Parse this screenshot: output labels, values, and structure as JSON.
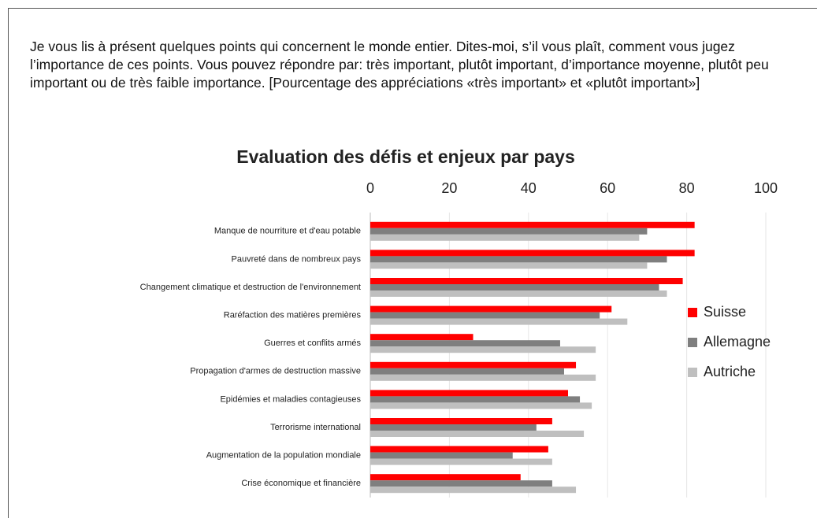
{
  "intro": "Je vous lis à présent quelques points qui concernent le monde entier. Dites-moi, s’il vous plaît, comment vous jugez l’importance de ces points. Vous pouvez répondre par: très important, plutôt important, d’importance moyenne, plutôt peu important ou de très faible importance. [Pourcentage des appréciations «très important» et «plutôt important»]",
  "chart_data": {
    "type": "hbar",
    "title": "Evaluation des défis et enjeux par pays",
    "categories": [
      "Manque de nourriture et d'eau potable",
      "Pauvreté dans de nombreux pays",
      "Changement climatique et destruction de l'environnement",
      "Raréfaction des matières premières",
      "Guerres et conflits armés",
      "Propagation d'armes de destruction massive",
      "Epidémies et maladies contagieuses",
      "Terrorisme international",
      "Augmentation de la population mondiale",
      "Crise économique et financière"
    ],
    "series": [
      {
        "name": "Suisse",
        "color": "#ff0000",
        "values": [
          82,
          82,
          79,
          61,
          26,
          52,
          50,
          46,
          45,
          38
        ]
      },
      {
        "name": "Allemagne",
        "color": "#7f7f7f",
        "values": [
          70,
          75,
          73,
          58,
          48,
          49,
          53,
          42,
          36,
          46
        ]
      },
      {
        "name": "Autriche",
        "color": "#bfbfbf",
        "values": [
          68,
          70,
          75,
          65,
          57,
          57,
          56,
          54,
          46,
          52
        ]
      }
    ],
    "xlim": [
      0,
      100
    ],
    "xticks": [
      0,
      20,
      40,
      60,
      80,
      100
    ],
    "grid": true,
    "legend": "right"
  }
}
